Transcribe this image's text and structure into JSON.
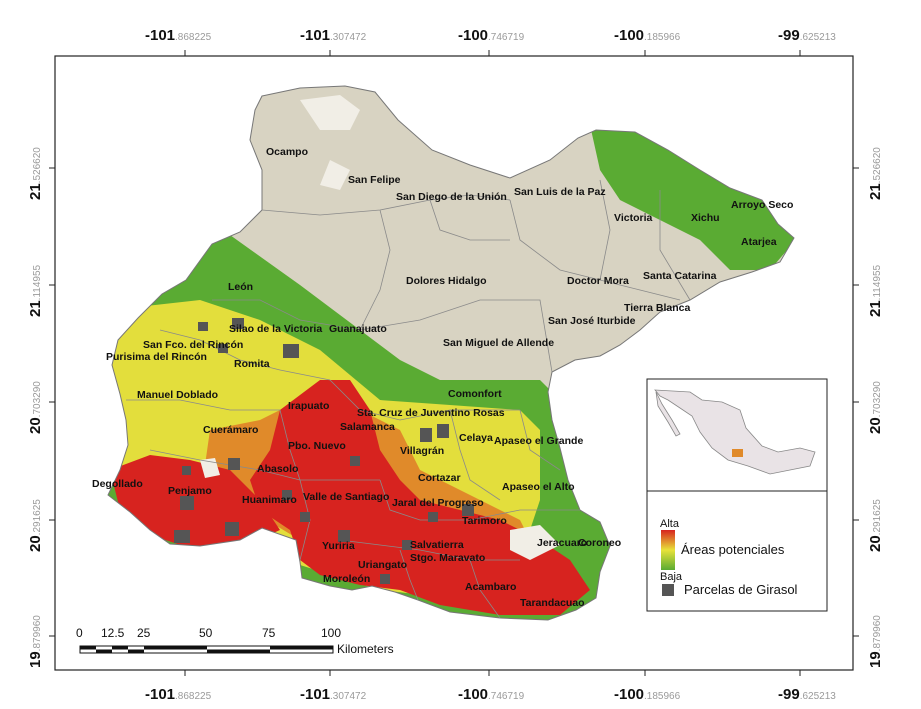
{
  "axes": {
    "top": [
      {
        "deg": "-101",
        "dec": ".868225"
      },
      {
        "deg": "-101",
        "dec": ".307472"
      },
      {
        "deg": "-100",
        "dec": ".746719"
      },
      {
        "deg": "-100",
        "dec": ".185966"
      },
      {
        "deg": "-99",
        "dec": ".625213"
      }
    ],
    "bottom": [
      {
        "deg": "-101",
        "dec": ".868225"
      },
      {
        "deg": "-101",
        "dec": ".307472"
      },
      {
        "deg": "-100",
        "dec": ".746719"
      },
      {
        "deg": "-100",
        "dec": ".185966"
      },
      {
        "deg": "-99",
        "dec": ".625213"
      }
    ],
    "left": [
      {
        "deg": "21",
        "dec": ".526620"
      },
      {
        "deg": "21",
        "dec": ".114955"
      },
      {
        "deg": "20",
        "dec": ".703290"
      },
      {
        "deg": "20",
        "dec": ".291625"
      },
      {
        "deg": "19",
        "dec": ".879960"
      }
    ],
    "right": [
      {
        "deg": "21",
        "dec": ".526620"
      },
      {
        "deg": "21",
        "dec": ".114955"
      },
      {
        "deg": "20",
        "dec": ".703290"
      },
      {
        "deg": "20",
        "dec": ".291625"
      },
      {
        "deg": "19",
        "dec": ".879960"
      }
    ]
  },
  "municipalities": [
    "Ocampo",
    "San Felipe",
    "San Diego de la Unión",
    "San Luis de la Paz",
    "Victoria",
    "Xichu",
    "Arroyo Seco",
    "Atarjea",
    "Santa Catarina",
    "Doctor Mora",
    "Tierra Blanca",
    "Dolores Hidalgo",
    "San José Iturbide",
    "San Miguel de Allende",
    "León",
    "Silao de la Victoria",
    "Guanajuato",
    "San Fco. del Rincón",
    "Purisima del Rincón",
    "Romita",
    "Manuel Doblado",
    "Irapuato",
    "Comonfort",
    "Sta. Cruz de Juventino Rosas",
    "Salamanca",
    "Cuerámaro",
    "Pbo. Nuevo",
    "Celaya",
    "Apaseo el Grande",
    "Villagrán",
    "Abasolo",
    "Cortazar",
    "Degollado",
    "Penjamo",
    "Huanimaro",
    "Valle de Santiago",
    "Jaral del Progreso",
    "Apaseo el Alto",
    "Tarimoro",
    "Yuriria",
    "Salvatierra",
    "Jeracuaro",
    "Coroneo",
    "Uriangato",
    "Stgo. Maravato",
    "Moroleón",
    "Acambaro",
    "Tarandacuao"
  ],
  "legend": {
    "high_label": "Alta",
    "ramp_label": "Áreas  potenciales",
    "low_label": "Baja",
    "parcels_label": "Parcelas de Girasol",
    "colors": {
      "high": "#d7231f",
      "mid": "#e8e23a",
      "low": "#5aab33",
      "parcel": "#555555"
    }
  },
  "scale_bar": {
    "ticks": [
      "0",
      "12.5",
      "25",
      "50",
      "75",
      "100"
    ],
    "unit": "Kilometers"
  },
  "colors": {
    "background_land": "#d8d3c2",
    "border": "#888888",
    "frame": "#222222"
  }
}
